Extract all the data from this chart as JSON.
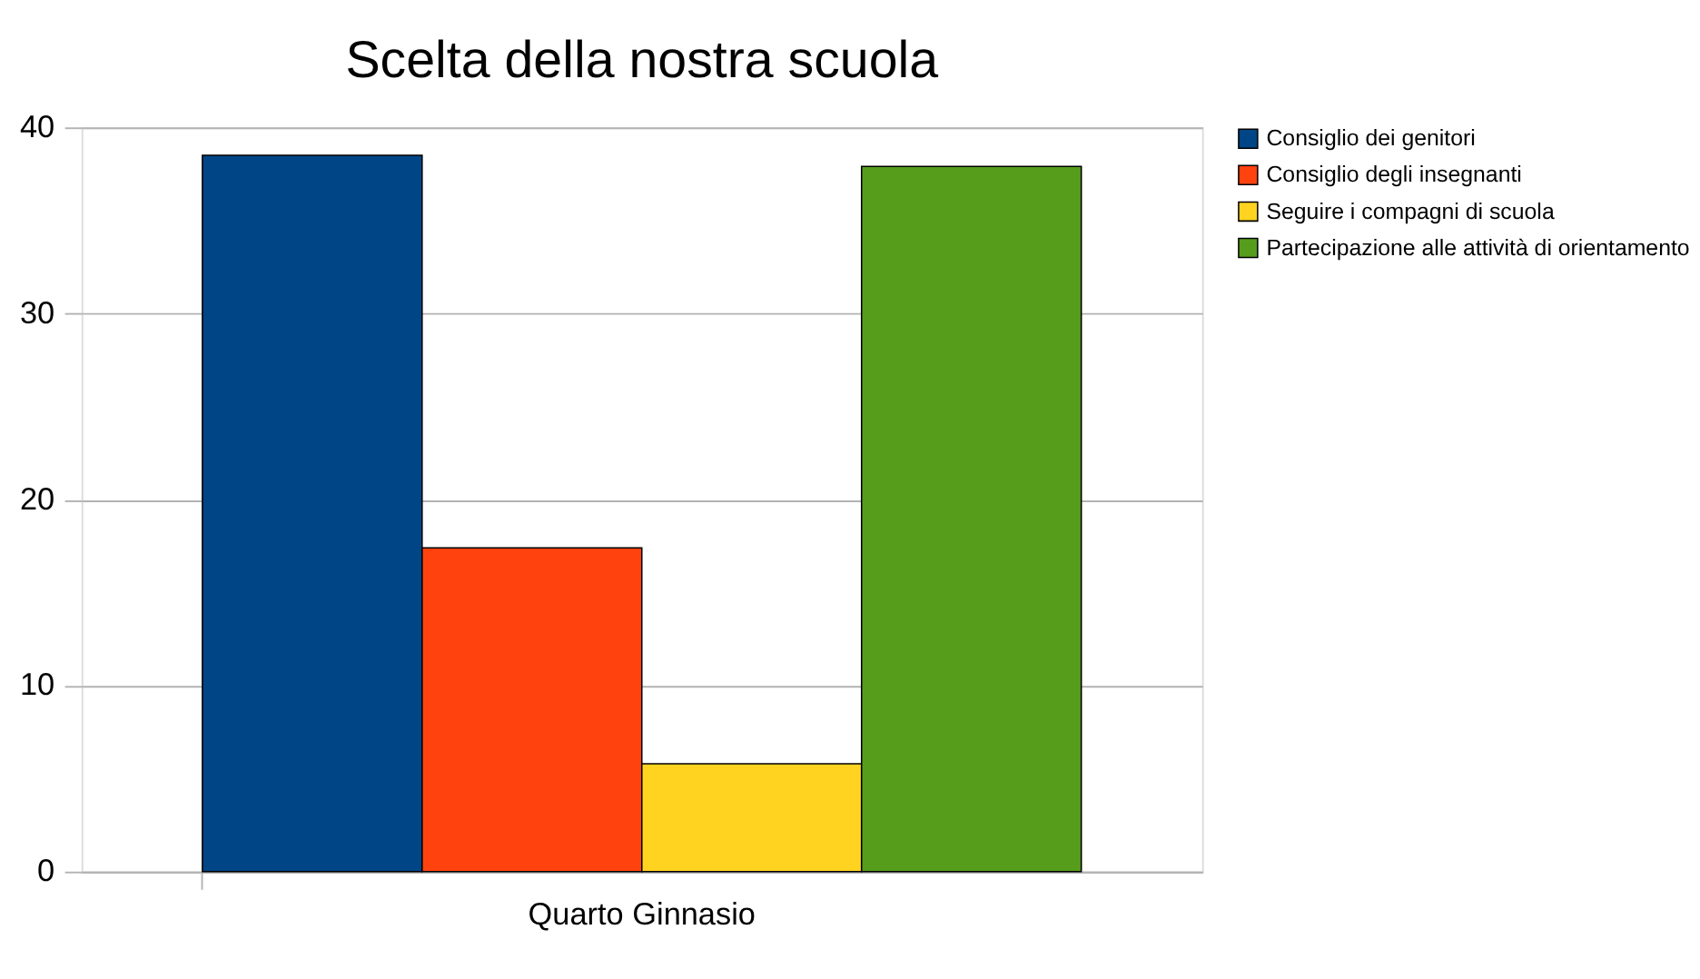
{
  "chart_data": {
    "type": "bar",
    "title": "Scelta della nostra scuola",
    "categories": [
      "Quarto Ginnasio"
    ],
    "series": [
      {
        "name": "Consiglio dei genitori",
        "color": "#004586",
        "values": [
          38.5
        ]
      },
      {
        "name": "Consiglio degli insegnanti",
        "color": "#ff420e",
        "values": [
          17.4
        ]
      },
      {
        "name": "Seguire i compagni di scuola",
        "color": "#ffd320",
        "values": [
          5.8
        ]
      },
      {
        "name": "Partecipazione alle attività di orientamento",
        "color": "#579d1c",
        "values": [
          37.9
        ]
      }
    ],
    "ylim": [
      0,
      40
    ],
    "yticks": [
      0,
      10,
      20,
      30,
      40
    ],
    "grid": "y",
    "legend": "right"
  }
}
